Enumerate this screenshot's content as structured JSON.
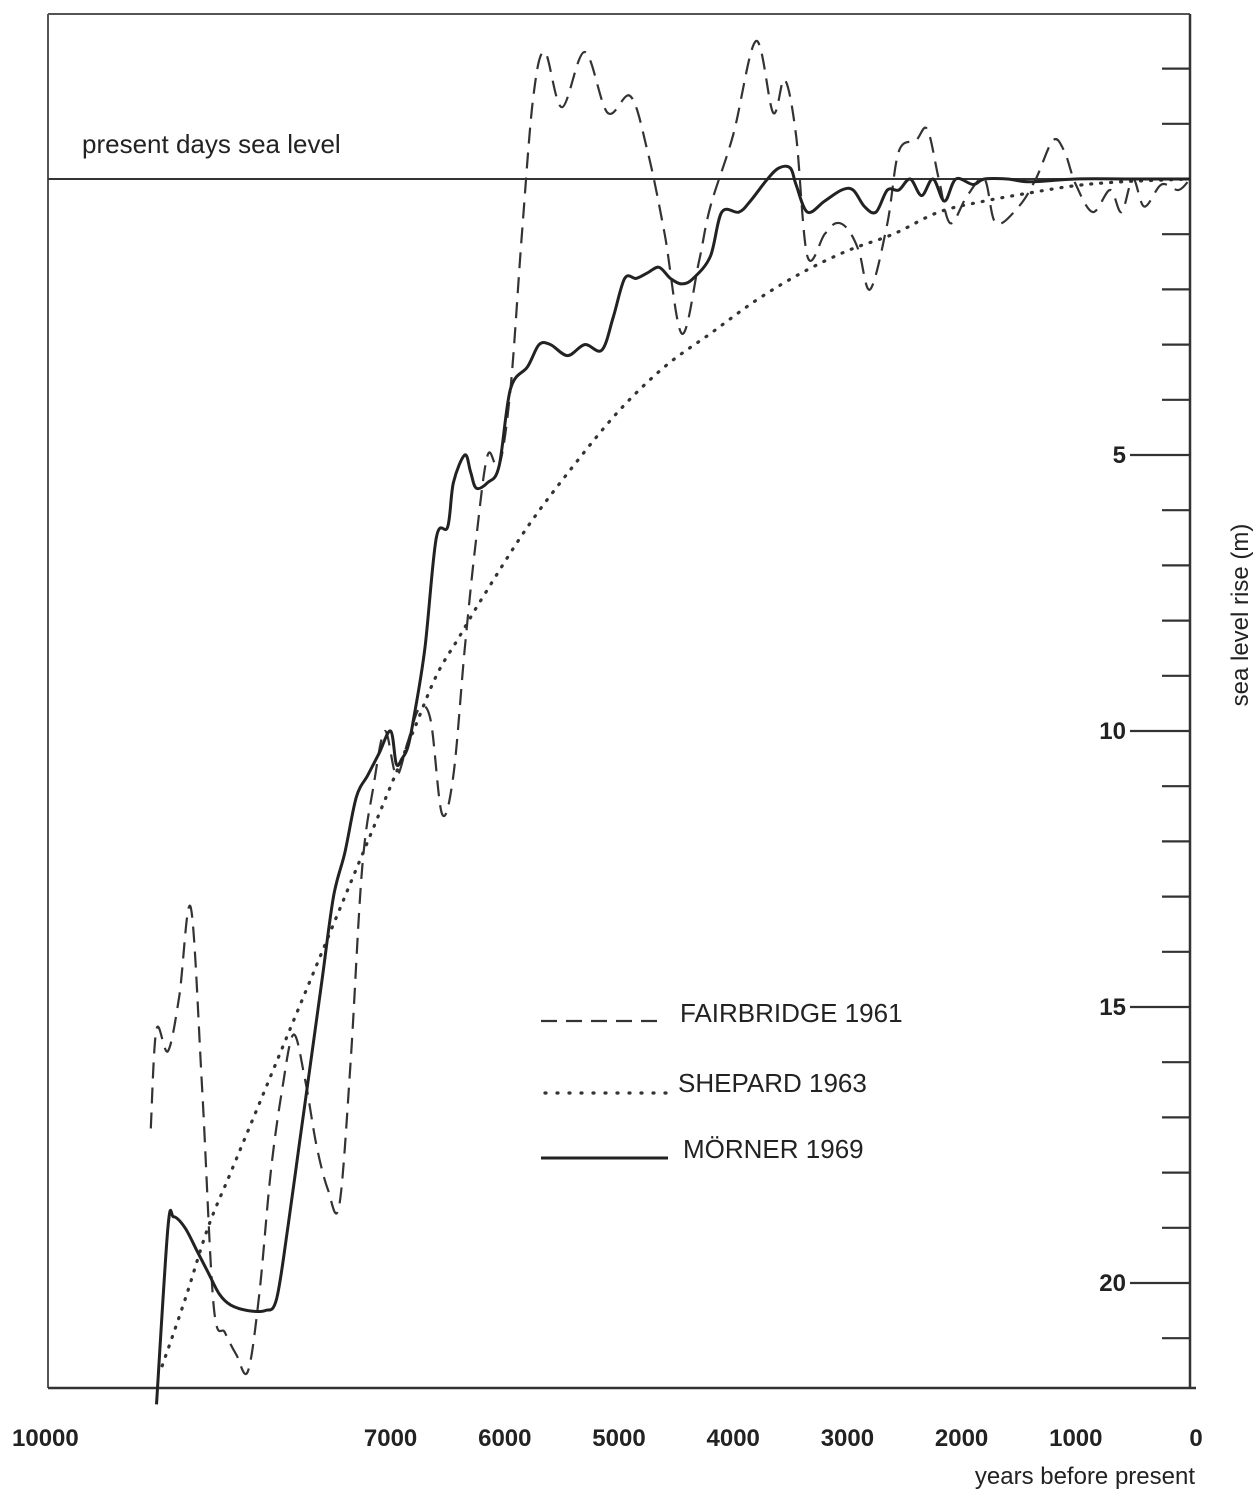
{
  "chart_data": {
    "type": "line",
    "xlabel": "years before present",
    "ylabel": "sea level rise (m)",
    "xlim": [
      10000,
      0
    ],
    "ylim": [
      -2.5,
      21.8
    ],
    "x_ticks": [
      10000,
      7000,
      6000,
      5000,
      4000,
      3000,
      2000,
      1000,
      0
    ],
    "y_ticks": [
      5,
      10,
      15,
      20
    ],
    "y_minor_step": 1,
    "reference_line": {
      "label": "present days sea level",
      "y": 0
    },
    "grid": false,
    "legend_position": "center",
    "series": [
      {
        "name": "FAIRBRIDGE 1961",
        "style": "dashed",
        "points": [
          [
            9100,
            17.2
          ],
          [
            9050,
            15.4
          ],
          [
            8950,
            15.8
          ],
          [
            8850,
            14.8
          ],
          [
            8750,
            13.2
          ],
          [
            8650,
            16.5
          ],
          [
            8550,
            20.4
          ],
          [
            8450,
            20.9
          ],
          [
            8350,
            21.3
          ],
          [
            8250,
            21.6
          ],
          [
            8150,
            20.2
          ],
          [
            8050,
            18.0
          ],
          [
            7950,
            16.5
          ],
          [
            7850,
            15.5
          ],
          [
            7750,
            16.3
          ],
          [
            7650,
            17.5
          ],
          [
            7550,
            18.3
          ],
          [
            7450,
            18.6
          ],
          [
            7350,
            16.0
          ],
          [
            7250,
            12.5
          ],
          [
            7150,
            11.0
          ],
          [
            7050,
            10.0
          ],
          [
            6950,
            10.8
          ],
          [
            6850,
            10.2
          ],
          [
            6750,
            9.6
          ],
          [
            6650,
            9.8
          ],
          [
            6550,
            11.5
          ],
          [
            6450,
            10.8
          ],
          [
            6350,
            8.5
          ],
          [
            6250,
            6.5
          ],
          [
            6150,
            5.0
          ],
          [
            6050,
            5.2
          ],
          [
            5950,
            3.8
          ],
          [
            5850,
            1.0
          ],
          [
            5750,
            -1.5
          ],
          [
            5650,
            -2.3
          ],
          [
            5500,
            -1.3
          ],
          [
            5300,
            -2.3
          ],
          [
            5100,
            -1.2
          ],
          [
            4900,
            -1.5
          ],
          [
            4750,
            -0.5
          ],
          [
            4600,
            1.0
          ],
          [
            4450,
            2.8
          ],
          [
            4300,
            1.5
          ],
          [
            4200,
            0.5
          ],
          [
            4000,
            -0.8
          ],
          [
            3800,
            -2.5
          ],
          [
            3650,
            -1.2
          ],
          [
            3550,
            -1.8
          ],
          [
            3450,
            -0.8
          ],
          [
            3350,
            1.4
          ],
          [
            3200,
            1.0
          ],
          [
            3100,
            0.8
          ],
          [
            3000,
            0.9
          ],
          [
            2900,
            1.3
          ],
          [
            2800,
            2.0
          ],
          [
            2650,
            0.8
          ],
          [
            2550,
            -0.5
          ],
          [
            2400,
            -0.7
          ],
          [
            2300,
            -0.9
          ],
          [
            2200,
            0.0
          ],
          [
            2100,
            0.8
          ],
          [
            1950,
            0.3
          ],
          [
            1800,
            0.0
          ],
          [
            1700,
            0.8
          ],
          [
            1500,
            0.5
          ],
          [
            1350,
            0.0
          ],
          [
            1200,
            -0.7
          ],
          [
            1100,
            -0.5
          ],
          [
            1000,
            0.1
          ],
          [
            850,
            0.6
          ],
          [
            700,
            0.2
          ],
          [
            600,
            0.6
          ],
          [
            500,
            0.0
          ],
          [
            400,
            0.5
          ],
          [
            250,
            0.1
          ],
          [
            100,
            0.2
          ],
          [
            0,
            0.0
          ]
        ]
      },
      {
        "name": "SHEPARD 1963",
        "style": "dotted",
        "points": [
          [
            9000,
            21.5
          ],
          [
            8800,
            20.3
          ],
          [
            8600,
            19.0
          ],
          [
            8400,
            18.0
          ],
          [
            8200,
            17.0
          ],
          [
            8000,
            16.0
          ],
          [
            7800,
            15.0
          ],
          [
            7600,
            14.0
          ],
          [
            7400,
            13.0
          ],
          [
            7200,
            12.0
          ],
          [
            7000,
            11.0
          ],
          [
            6800,
            10.0
          ],
          [
            6600,
            9.0
          ],
          [
            6400,
            8.3
          ],
          [
            6200,
            7.6
          ],
          [
            5800,
            6.3
          ],
          [
            5400,
            5.2
          ],
          [
            5000,
            4.2
          ],
          [
            4600,
            3.4
          ],
          [
            4200,
            2.8
          ],
          [
            3800,
            2.2
          ],
          [
            3400,
            1.7
          ],
          [
            3000,
            1.3
          ],
          [
            2600,
            1.0
          ],
          [
            2200,
            0.6
          ],
          [
            1800,
            0.4
          ],
          [
            1400,
            0.25
          ],
          [
            1000,
            0.12
          ],
          [
            600,
            0.05
          ],
          [
            0,
            0.0
          ]
        ]
      },
      {
        "name": "MÖRNER 1969",
        "style": "solid",
        "points": [
          [
            9050,
            22.2
          ],
          [
            8950,
            19.0
          ],
          [
            8900,
            18.8
          ],
          [
            8800,
            19.0
          ],
          [
            8700,
            19.4
          ],
          [
            8600,
            19.8
          ],
          [
            8500,
            20.2
          ],
          [
            8400,
            20.4
          ],
          [
            8250,
            20.5
          ],
          [
            8100,
            20.5
          ],
          [
            8000,
            20.3
          ],
          [
            7900,
            19.0
          ],
          [
            7800,
            17.5
          ],
          [
            7700,
            16.0
          ],
          [
            7600,
            14.5
          ],
          [
            7500,
            13.0
          ],
          [
            7400,
            12.2
          ],
          [
            7300,
            11.2
          ],
          [
            7200,
            10.8
          ],
          [
            7100,
            10.4
          ],
          [
            7000,
            10.0
          ],
          [
            6950,
            10.6
          ],
          [
            6900,
            10.5
          ],
          [
            6850,
            10.3
          ],
          [
            6800,
            9.8
          ],
          [
            6700,
            8.5
          ],
          [
            6600,
            6.5
          ],
          [
            6500,
            6.3
          ],
          [
            6450,
            5.5
          ],
          [
            6350,
            5.0
          ],
          [
            6300,
            5.3
          ],
          [
            6250,
            5.6
          ],
          [
            6150,
            5.5
          ],
          [
            6050,
            5.2
          ],
          [
            5950,
            3.8
          ],
          [
            5800,
            3.4
          ],
          [
            5700,
            3.0
          ],
          [
            5600,
            3.0
          ],
          [
            5450,
            3.2
          ],
          [
            5300,
            3.0
          ],
          [
            5150,
            3.1
          ],
          [
            5050,
            2.5
          ],
          [
            4950,
            1.8
          ],
          [
            4850,
            1.8
          ],
          [
            4750,
            1.7
          ],
          [
            4650,
            1.6
          ],
          [
            4550,
            1.8
          ],
          [
            4450,
            1.9
          ],
          [
            4350,
            1.8
          ],
          [
            4200,
            1.4
          ],
          [
            4100,
            0.6
          ],
          [
            3950,
            0.6
          ],
          [
            3850,
            0.4
          ],
          [
            3700,
            0.0
          ],
          [
            3600,
            -0.2
          ],
          [
            3500,
            -0.2
          ],
          [
            3450,
            0.1
          ],
          [
            3350,
            0.6
          ],
          [
            3200,
            0.4
          ],
          [
            3050,
            0.2
          ],
          [
            2950,
            0.2
          ],
          [
            2850,
            0.5
          ],
          [
            2750,
            0.6
          ],
          [
            2650,
            0.2
          ],
          [
            2550,
            0.2
          ],
          [
            2450,
            0.0
          ],
          [
            2350,
            0.3
          ],
          [
            2250,
            0.0
          ],
          [
            2150,
            0.4
          ],
          [
            2050,
            0.0
          ],
          [
            1900,
            0.1
          ],
          [
            1800,
            0.0
          ],
          [
            1600,
            0.0
          ],
          [
            1400,
            0.05
          ],
          [
            1000,
            0.0
          ],
          [
            500,
            0.0
          ],
          [
            0,
            0.0
          ]
        ]
      }
    ]
  }
}
